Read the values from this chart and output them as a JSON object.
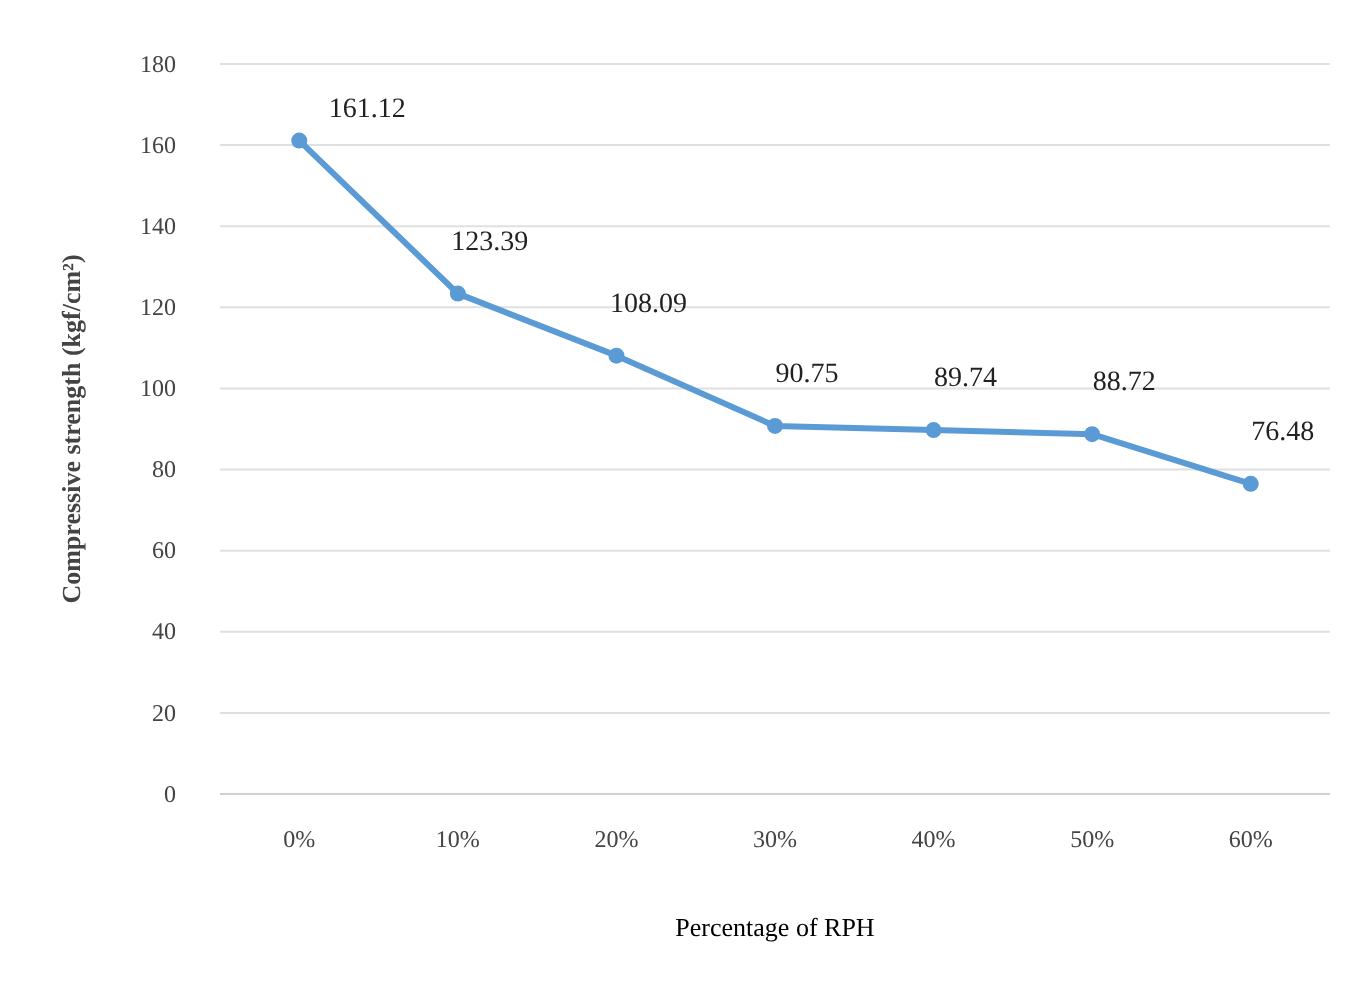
{
  "chart_data": {
    "type": "line",
    "xlabel": "Percentage of RPH",
    "ylabel": "Compressive strength (kgf/cm²)",
    "categories": [
      "0%",
      "10%",
      "20%",
      "30%",
      "40%",
      "50%",
      "60%"
    ],
    "series": [
      {
        "color": "#5b9bd5",
        "values": [
          161.12,
          123.39,
          108.09,
          90.75,
          89.74,
          88.72,
          76.48
        ]
      }
    ],
    "ylim": [
      0,
      180
    ],
    "yticks": [
      0,
      20,
      40,
      60,
      80,
      100,
      120,
      140,
      160,
      180
    ],
    "grid": "y",
    "marker": "circle",
    "line_style": "solid",
    "data_labels": true
  }
}
